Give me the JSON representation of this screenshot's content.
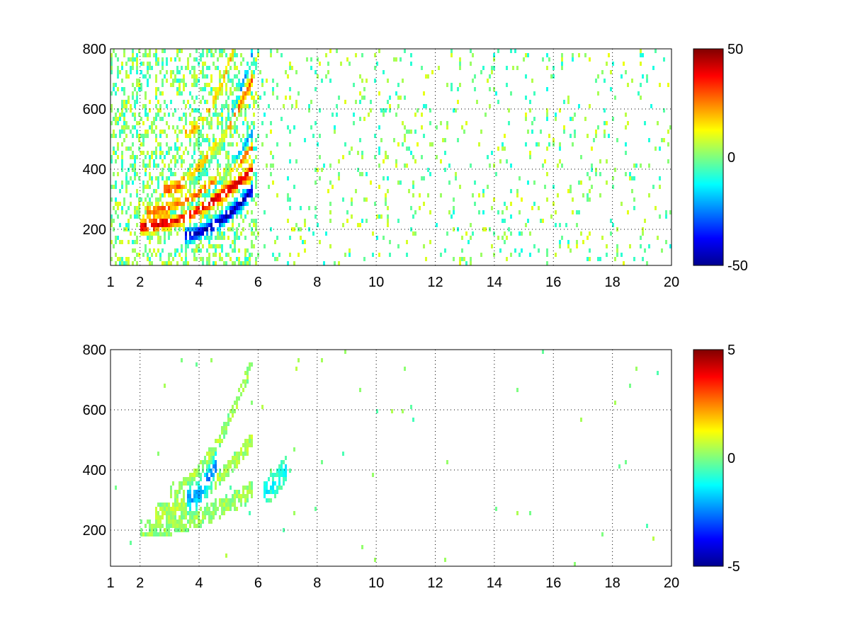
{
  "chart_data": [
    {
      "type": "heatmap",
      "name": "top-panel",
      "title": "",
      "xlabel": "",
      "ylabel": "",
      "xlim": [
        1,
        20
      ],
      "ylim": [
        80,
        800
      ],
      "x_ticks": [
        1,
        2,
        4,
        6,
        8,
        10,
        12,
        14,
        16,
        18,
        20
      ],
      "y_ticks": [
        200,
        400,
        600,
        800
      ],
      "grid": true,
      "grid_x": [
        2,
        4,
        6,
        8,
        10,
        12,
        14,
        16,
        18,
        20
      ],
      "grid_y": [
        200,
        400,
        600,
        800
      ],
      "colormap": "jet",
      "colorbar": {
        "min": -50,
        "max": 50,
        "ticks": [
          50,
          0,
          -50
        ],
        "labels": [
          "50",
          "0",
          "-50"
        ]
      },
      "structures": [
        {
          "desc": "positive band",
          "x0": 2.0,
          "x1": 5.8,
          "y0": 210,
          "y1": 395,
          "value": 42,
          "width": 22
        },
        {
          "desc": "negative band",
          "x0": 3.5,
          "x1": 5.8,
          "y0": 180,
          "y1": 330,
          "value": -45,
          "width": 22
        },
        {
          "desc": "positive band",
          "x0": 2.2,
          "x1": 5.8,
          "y0": 260,
          "y1": 470,
          "value": 28,
          "width": 18
        },
        {
          "desc": "negative band",
          "x0": 3.0,
          "x1": 5.8,
          "y0": 250,
          "y1": 520,
          "value": -25,
          "width": 16
        },
        {
          "desc": "positive band",
          "x0": 2.8,
          "x1": 5.8,
          "y0": 330,
          "y1": 700,
          "value": 30,
          "width": 20
        },
        {
          "desc": "negative band",
          "x0": 3.5,
          "x1": 5.8,
          "y0": 360,
          "y1": 780,
          "value": -22,
          "width": 18
        },
        {
          "desc": "positive band",
          "x0": 3.5,
          "x1": 5.2,
          "y0": 520,
          "y1": 800,
          "value": 20,
          "width": 16
        }
      ]
    },
    {
      "type": "heatmap",
      "name": "bottom-panel",
      "title": "",
      "xlabel": "",
      "ylabel": "",
      "xlim": [
        1,
        20
      ],
      "ylim": [
        80,
        800
      ],
      "x_ticks": [
        1,
        2,
        4,
        6,
        8,
        10,
        12,
        14,
        16,
        18,
        20
      ],
      "y_ticks": [
        200,
        400,
        600,
        800
      ],
      "grid": true,
      "grid_x": [
        2,
        4,
        6,
        8,
        10,
        12,
        14,
        16,
        18,
        20
      ],
      "grid_y": [
        200,
        400,
        600,
        800
      ],
      "colormap": "jet",
      "colorbar": {
        "min": -5,
        "max": 5,
        "ticks": [
          5,
          0,
          -5
        ],
        "labels": [
          "5",
          "0",
          "-5"
        ]
      },
      "structures": [
        {
          "desc": "near-zero band",
          "x0": 2.0,
          "x1": 5.8,
          "y0": 205,
          "y1": 330,
          "value": 0.3,
          "width": 30
        },
        {
          "desc": "near-zero band",
          "x0": 2.5,
          "x1": 5.8,
          "y0": 260,
          "y1": 500,
          "value": 0.5,
          "width": 24
        },
        {
          "desc": "near-zero band",
          "x0": 3.0,
          "x1": 5.8,
          "y0": 330,
          "y1": 760,
          "value": 0.4,
          "width": 22
        },
        {
          "desc": "negative patch",
          "x0": 3.6,
          "x1": 4.6,
          "y0": 300,
          "y1": 420,
          "value": -2.5,
          "width": 40
        },
        {
          "desc": "negative patch",
          "x0": 6.2,
          "x1": 7.0,
          "y0": 330,
          "y1": 420,
          "value": -1.2,
          "width": 40
        }
      ]
    }
  ]
}
